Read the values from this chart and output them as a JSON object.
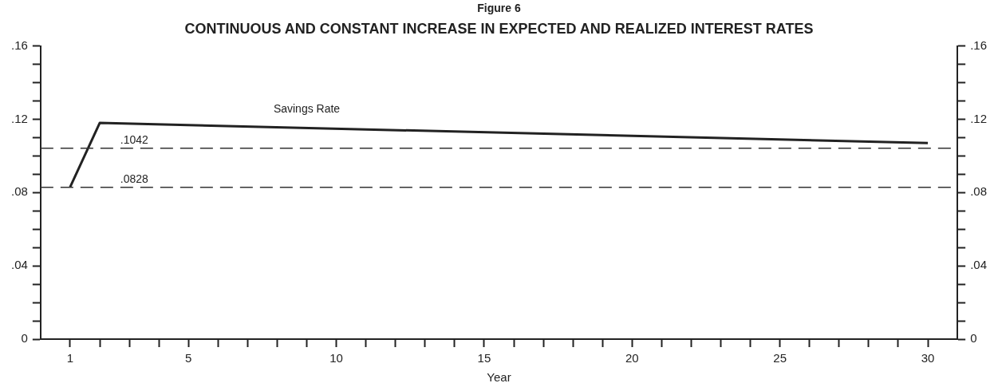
{
  "chart_data": {
    "type": "line",
    "title": "CONTINUOUS AND CONSTANT INCREASE IN EXPECTED AND REALIZED INTEREST RATES",
    "annotations": [
      "Figure 6"
    ],
    "xlabel": "Year",
    "series": [
      {
        "name": "Savings Rate",
        "color": "#222222",
        "x": [
          1,
          2,
          30
        ],
        "values": [
          0.083,
          0.118,
          0.107
        ]
      }
    ],
    "xlim": [
      0,
      31
    ],
    "xticks": [
      1,
      {
        "value": 2,
        "label": null
      },
      {
        "value": 3,
        "label": null
      },
      {
        "value": 4,
        "label": null
      },
      5,
      {
        "value": 6,
        "label": null
      },
      {
        "value": 7,
        "label": null
      },
      {
        "value": 8,
        "label": null
      },
      {
        "value": 9,
        "label": null
      },
      10,
      {
        "value": 11,
        "label": null
      },
      {
        "value": 12,
        "label": null
      },
      {
        "value": 13,
        "label": null
      },
      {
        "value": 14,
        "label": null
      },
      15,
      {
        "value": 16,
        "label": null
      },
      {
        "value": 17,
        "label": null
      },
      {
        "value": 18,
        "label": null
      },
      {
        "value": 19,
        "label": null
      },
      20,
      {
        "value": 21,
        "label": null
      },
      {
        "value": 22,
        "label": null
      },
      {
        "value": 23,
        "label": null
      },
      {
        "value": 24,
        "label": null
      },
      25,
      {
        "value": 26,
        "label": null
      },
      {
        "value": 27,
        "label": null
      },
      {
        "value": 28,
        "label": null
      },
      {
        "value": 29,
        "label": null
      },
      30
    ],
    "ylim": [
      0,
      0.16
    ],
    "yticks": [
      0,
      {
        "value": 0.01,
        "label": null
      },
      {
        "value": 0.02,
        "label": null
      },
      {
        "value": 0.03,
        "label": null
      },
      {
        "value": 0.04,
        "label": ".04"
      },
      {
        "value": 0.05,
        "label": null
      },
      {
        "value": 0.06,
        "label": null
      },
      {
        "value": 0.07,
        "label": null
      },
      {
        "value": 0.08,
        "label": ".08"
      },
      {
        "value": 0.09,
        "label": null
      },
      {
        "value": 0.1,
        "label": null
      },
      {
        "value": 0.11,
        "label": null
      },
      {
        "value": 0.12,
        "label": ".12"
      },
      {
        "value": 0.13,
        "label": null
      },
      {
        "value": 0.14,
        "label": null
      },
      {
        "value": 0.15,
        "label": null
      },
      {
        "value": 0.16,
        "label": ".16"
      }
    ],
    "y2lim": [
      0,
      0.16
    ],
    "y2ticks": [
      0,
      {
        "value": 0.01,
        "label": null
      },
      {
        "value": 0.02,
        "label": null
      },
      {
        "value": 0.03,
        "label": null
      },
      {
        "value": 0.04,
        "label": ".04"
      },
      {
        "value": 0.05,
        "label": null
      },
      {
        "value": 0.06,
        "label": null
      },
      {
        "value": 0.07,
        "label": null
      },
      {
        "value": 0.08,
        "label": ".08"
      },
      {
        "value": 0.09,
        "label": null
      },
      {
        "value": 0.1,
        "label": null
      },
      {
        "value": 0.11,
        "label": null
      },
      {
        "value": 0.12,
        "label": ".12"
      },
      {
        "value": 0.13,
        "label": null
      },
      {
        "value": 0.14,
        "label": null
      },
      {
        "value": 0.15,
        "label": null
      },
      {
        "value": 0.16,
        "label": ".16"
      }
    ],
    "ref_lines": [
      {
        "axis": "y",
        "value": 0.1042,
        "label": ".1042",
        "color": "#333333",
        "line_style": "dashed"
      },
      {
        "axis": "y",
        "value": 0.0828,
        "label": ".0828",
        "color": "#333333",
        "line_style": "dashed"
      }
    ],
    "grid": false,
    "legend": false,
    "marker": "none",
    "line_style": "solid"
  }
}
